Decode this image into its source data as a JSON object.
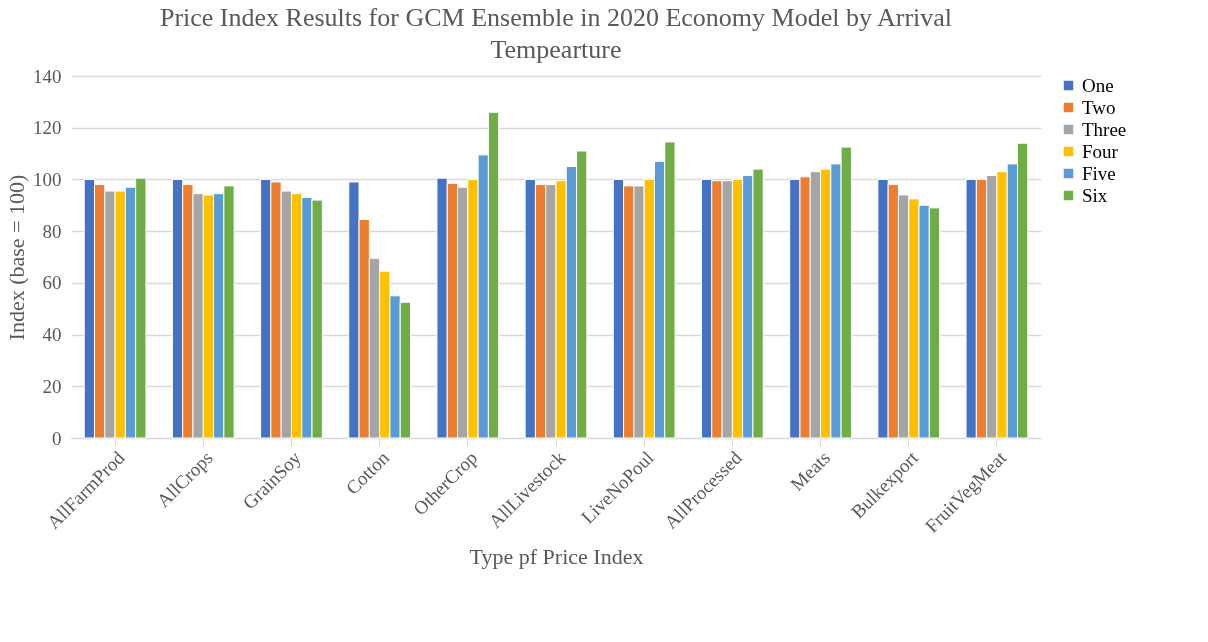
{
  "chart_data": {
    "type": "bar",
    "title": "Price Index Results for GCM Ensemble in 2020 Economy Model by Arrival Tempearture",
    "xlabel": "Type pf Price Index",
    "ylabel": "Index (base = 100)",
    "categories": [
      "AllFarmProd",
      "AllCrops",
      "GrainSoy",
      "Cotton",
      "OtherCrop",
      "AllLivestock",
      "LiveNoPoul",
      "AllProcessed",
      "Meats",
      "Bulkexport",
      "FruitVegMeat"
    ],
    "series": [
      {
        "name": "One",
        "color": "#4472c4",
        "values": [
          100,
          100,
          100,
          99,
          100.5,
          100,
          100,
          100,
          100,
          100,
          100
        ]
      },
      {
        "name": "Two",
        "color": "#ed7d31",
        "values": [
          98,
          98,
          99,
          84.5,
          98.5,
          98,
          97.5,
          99.5,
          101,
          98,
          100
        ]
      },
      {
        "name": "Three",
        "color": "#a5a5a5",
        "values": [
          95.5,
          94.5,
          95.5,
          69.5,
          97,
          98,
          97.5,
          99.5,
          103,
          94,
          101.5
        ]
      },
      {
        "name": "Four",
        "color": "#ffc000",
        "values": [
          95.5,
          94,
          94.5,
          64.5,
          100,
          99.5,
          100,
          100,
          104,
          92.5,
          103
        ]
      },
      {
        "name": "Five",
        "color": "#5b9bd5",
        "values": [
          97,
          94.5,
          93,
          55,
          109.5,
          105,
          107,
          101.5,
          106,
          90,
          106
        ]
      },
      {
        "name": "Six",
        "color": "#70ad47",
        "values": [
          100.5,
          97.5,
          92,
          52.5,
          126,
          111,
          114.5,
          104,
          112.5,
          89,
          114
        ]
      }
    ],
    "ylim": [
      0,
      140
    ],
    "yticks": [
      0,
      20,
      40,
      60,
      80,
      100,
      120,
      140
    ],
    "grid": "y",
    "legend": "right"
  }
}
